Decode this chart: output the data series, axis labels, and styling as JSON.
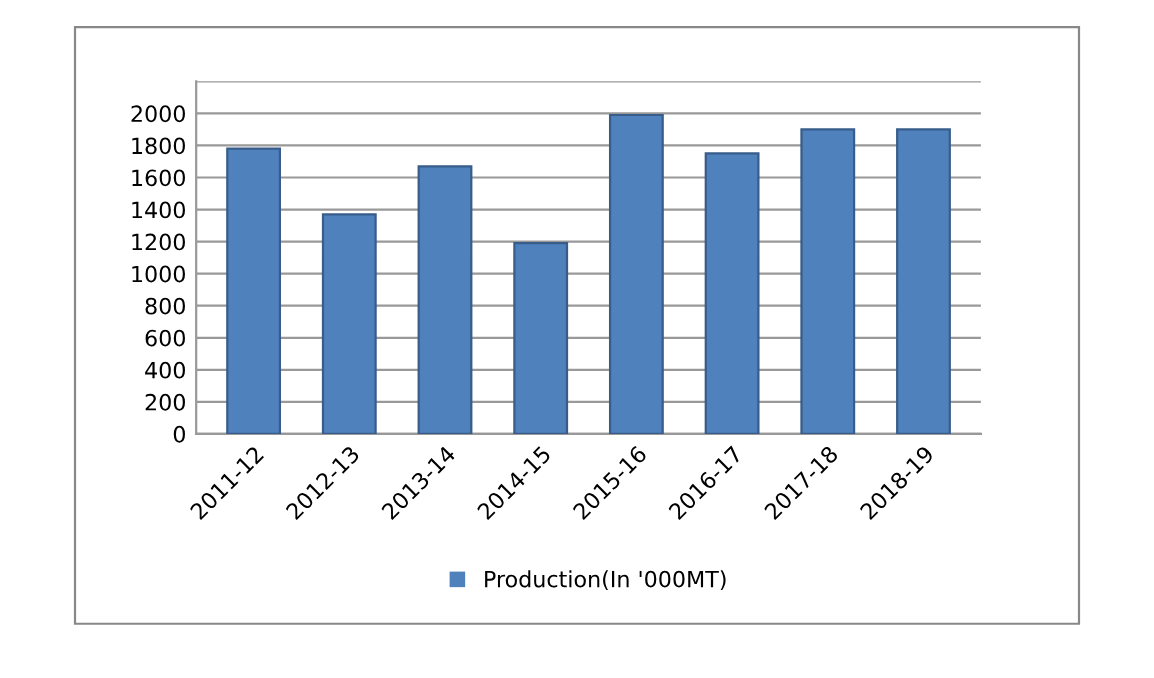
{
  "chart_data": {
    "type": "bar",
    "categories": [
      "2011-12",
      "2012-13",
      "2013-14",
      "2014-15",
      "2015-16",
      "2016-17",
      "2017-18",
      "2018-19"
    ],
    "series": [
      {
        "name": "Production(In '000MT)",
        "color": "#4f81bd",
        "values": [
          1780,
          1370,
          1670,
          1190,
          1990,
          1750,
          1900,
          1900
        ]
      }
    ],
    "ylim": [
      0,
      2200
    ],
    "yticks": [
      0,
      200,
      400,
      600,
      800,
      1000,
      1200,
      1400,
      1600,
      1800,
      2000,
      {
        "value": 2200,
        "label": null
      }
    ],
    "grid": "y",
    "legend": "bottom"
  }
}
